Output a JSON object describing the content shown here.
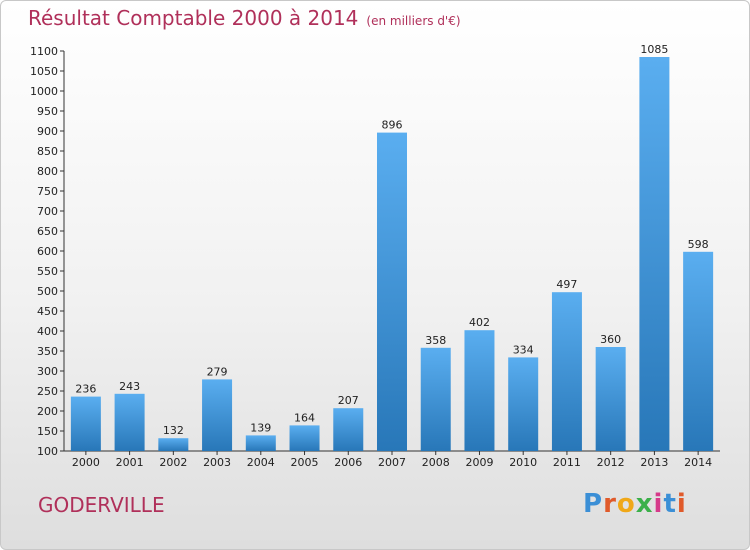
{
  "title": "Résultat Comptable 2000 à 2014",
  "subtitle": "(en milliers d'€)",
  "town": "GODERVILLE",
  "logo_text": "Proxiti",
  "colors": {
    "bar_light": "#5aaef0",
    "bar_dark": "#2877b8",
    "title": "#b0305a"
  },
  "chart_data": {
    "type": "bar",
    "categories": [
      "2000",
      "2001",
      "2002",
      "2003",
      "2004",
      "2005",
      "2006",
      "2007",
      "2008",
      "2009",
      "2010",
      "2011",
      "2012",
      "2013",
      "2014"
    ],
    "values": [
      236,
      243,
      132,
      279,
      139,
      164,
      207,
      896,
      358,
      402,
      334,
      497,
      360,
      1085,
      598
    ],
    "ylim": [
      100,
      1100
    ],
    "yticks": [
      100,
      150,
      200,
      250,
      300,
      350,
      400,
      450,
      500,
      550,
      600,
      650,
      700,
      750,
      800,
      850,
      900,
      950,
      1000,
      1050,
      1100
    ],
    "grid": false,
    "title": "Résultat Comptable 2000 à 2014",
    "ylabel": "",
    "xlabel": ""
  }
}
